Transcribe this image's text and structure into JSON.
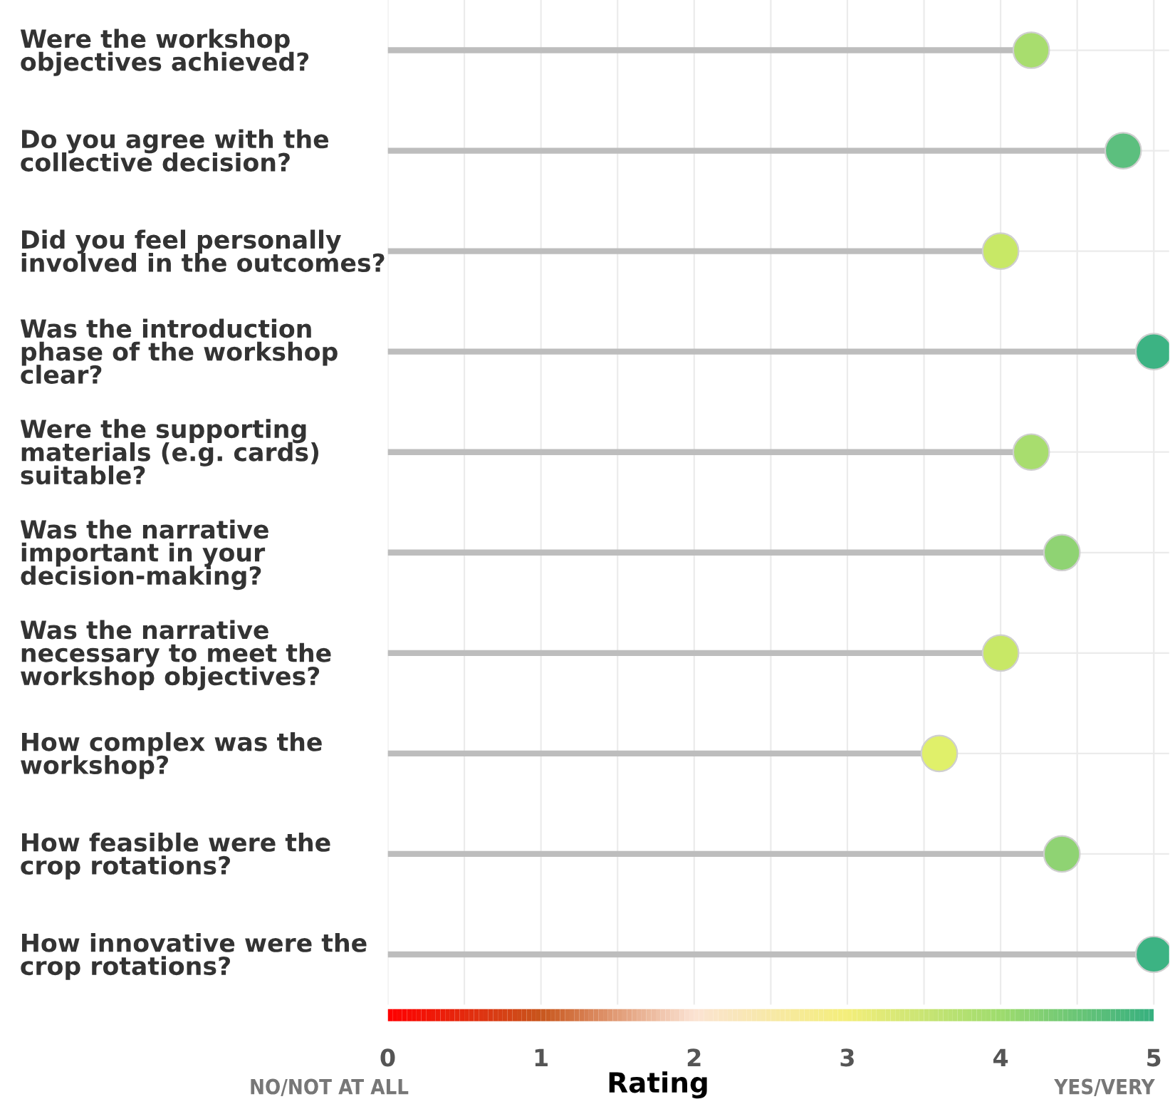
{
  "chart_data": {
    "type": "lollipop",
    "orientation": "horizontal",
    "categories": [
      "Were the workshop\nobjectives achieved?",
      "Do you agree with the\ncollective decision?",
      "Did you feel personally\ninvolved in the outcomes?",
      "Was the introduction\nphase of the workshop\nclear?",
      "Were the supporting\nmaterials (e.g. cards)\nsuitable?",
      "Was the narrative\nimportant in your\ndecision-making?",
      "Was the narrative\nnecessary to meet the\nworkshop objectives?",
      "How complex was the\nworkshop?",
      "How feasible were the\ncrop rotations?",
      "How innovative were the\ncrop rotations?"
    ],
    "values": [
      4.2,
      4.8,
      4.0,
      5.0,
      4.2,
      4.4,
      4.0,
      3.6,
      4.4,
      5.0
    ],
    "colors": [
      "#a8dd6e",
      "#5cbf7e",
      "#c8e866",
      "#3cb383",
      "#a8dd6e",
      "#8fd373",
      "#c8e866",
      "#e0f06a",
      "#8fd373",
      "#3cb383"
    ],
    "xlabel": "Rating",
    "xlim": [
      0,
      5.1
    ],
    "xticks": [
      0,
      {
        "value": 0.5,
        "label": null
      },
      1,
      {
        "value": 1.5,
        "label": null
      },
      2,
      {
        "value": 2.5,
        "label": null
      },
      3,
      {
        "value": 3.5,
        "label": null
      },
      4,
      {
        "value": 4.5,
        "label": null
      },
      5
    ],
    "grid": true,
    "marker": "circle",
    "annotations": [
      "NO/NOT AT ALL",
      "YES/VERY"
    ]
  }
}
